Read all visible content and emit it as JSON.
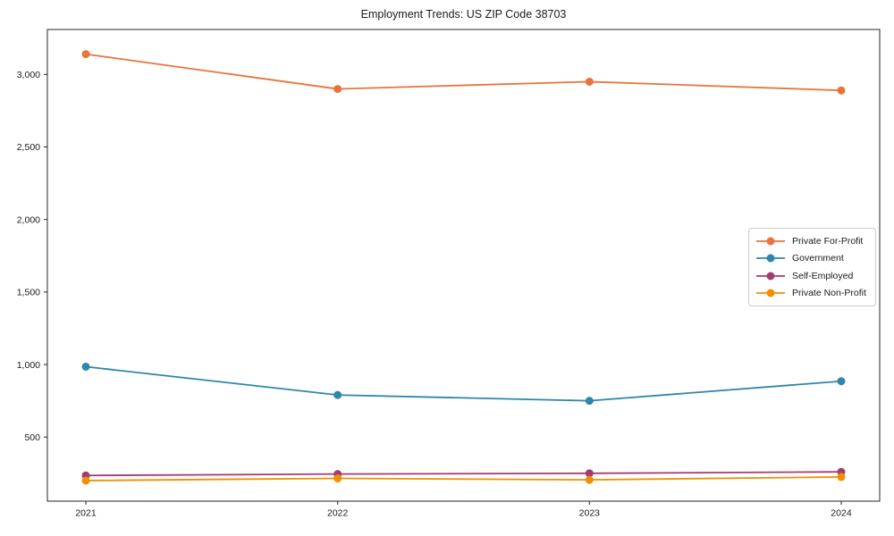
{
  "chart_data": {
    "type": "line",
    "title": "Employment Trends: US ZIP Code 38703",
    "categories": [
      "2021",
      "2022",
      "2023",
      "2024"
    ],
    "series": [
      {
        "name": "Private For-Profit",
        "color": "#E8743B",
        "values": [
          3140,
          2900,
          2950,
          2890
        ]
      },
      {
        "name": "Government",
        "color": "#2E86AB",
        "values": [
          985,
          790,
          750,
          885
        ]
      },
      {
        "name": "Self-Employed",
        "color": "#A23B72",
        "values": [
          235,
          245,
          250,
          260
        ]
      },
      {
        "name": "Private Non-Profit",
        "color": "#F18F01",
        "values": [
          200,
          215,
          205,
          225
        ]
      }
    ],
    "xlabel": "",
    "ylabel": "",
    "ylim": [
      58,
      3310
    ],
    "yticks": [
      500,
      1000,
      1500,
      2000,
      2500,
      3000
    ],
    "ytick_labels": [
      "500",
      "1,000",
      "1,500",
      "2,000",
      "2,500",
      "3,000"
    ],
    "grid": false,
    "legend_position": "center-right",
    "marker": "circle",
    "axis_color": "#262626",
    "text_color": "#1a1a1a"
  }
}
